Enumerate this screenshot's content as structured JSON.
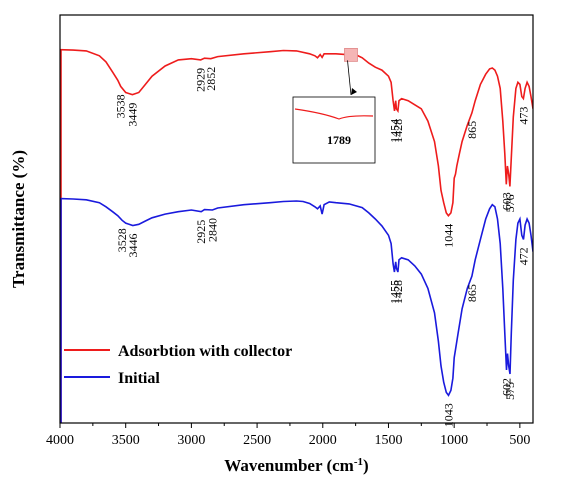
{
  "chart_data": {
    "type": "line",
    "xlabel": "Wavenumber (cm",
    "xlabel_sup": "-1",
    "xlabel_end": ")",
    "ylabel": "Transmittance (%)",
    "xlim": [
      4000,
      400
    ],
    "x_reversed": true,
    "xticks": [
      4000,
      3500,
      3000,
      2500,
      2000,
      1500,
      1000,
      500
    ],
    "yticks_shown": false,
    "grid": false,
    "legend_position": "bottom-left",
    "series": [
      {
        "name": "Adsorbtion with collector",
        "color": "#ee1c1c",
        "points": [
          [
            4000,
            0.915
          ],
          [
            3900,
            0.914
          ],
          [
            3800,
            0.912
          ],
          [
            3700,
            0.9
          ],
          [
            3650,
            0.885
          ],
          [
            3600,
            0.86
          ],
          [
            3560,
            0.84
          ],
          [
            3538,
            0.825
          ],
          [
            3500,
            0.81
          ],
          [
            3449,
            0.805
          ],
          [
            3400,
            0.81
          ],
          [
            3350,
            0.83
          ],
          [
            3300,
            0.85
          ],
          [
            3200,
            0.875
          ],
          [
            3100,
            0.89
          ],
          [
            3000,
            0.893
          ],
          [
            2929,
            0.89
          ],
          [
            2900,
            0.894
          ],
          [
            2852,
            0.893
          ],
          [
            2800,
            0.898
          ],
          [
            2600,
            0.905
          ],
          [
            2400,
            0.91
          ],
          [
            2300,
            0.913
          ],
          [
            2200,
            0.912
          ],
          [
            2100,
            0.905
          ],
          [
            2060,
            0.9
          ],
          [
            2040,
            0.895
          ],
          [
            2020,
            0.903
          ],
          [
            2005,
            0.896
          ],
          [
            1990,
            0.905
          ],
          [
            1950,
            0.905
          ],
          [
            1900,
            0.905
          ],
          [
            1820,
            0.903
          ],
          [
            1789,
            0.901
          ],
          [
            1750,
            0.903
          ],
          [
            1700,
            0.895
          ],
          [
            1650,
            0.882
          ],
          [
            1600,
            0.872
          ],
          [
            1550,
            0.865
          ],
          [
            1500,
            0.85
          ],
          [
            1480,
            0.835
          ],
          [
            1465,
            0.79
          ],
          [
            1454,
            0.765
          ],
          [
            1445,
            0.79
          ],
          [
            1440,
            0.77
          ],
          [
            1428,
            0.765
          ],
          [
            1420,
            0.79
          ],
          [
            1400,
            0.795
          ],
          [
            1350,
            0.79
          ],
          [
            1300,
            0.78
          ],
          [
            1250,
            0.77
          ],
          [
            1200,
            0.74
          ],
          [
            1150,
            0.69
          ],
          [
            1120,
            0.63
          ],
          [
            1100,
            0.57
          ],
          [
            1080,
            0.54
          ],
          [
            1060,
            0.515
          ],
          [
            1044,
            0.508
          ],
          [
            1025,
            0.515
          ],
          [
            1010,
            0.54
          ],
          [
            1000,
            0.6
          ],
          [
            990,
            0.61
          ],
          [
            980,
            0.63
          ],
          [
            960,
            0.66
          ],
          [
            940,
            0.69
          ],
          [
            900,
            0.73
          ],
          [
            865,
            0.76
          ],
          [
            840,
            0.79
          ],
          [
            800,
            0.83
          ],
          [
            760,
            0.855
          ],
          [
            730,
            0.868
          ],
          [
            710,
            0.87
          ],
          [
            690,
            0.865
          ],
          [
            670,
            0.85
          ],
          [
            650,
            0.82
          ],
          [
            630,
            0.74
          ],
          [
            615,
            0.66
          ],
          [
            603,
            0.585
          ],
          [
            595,
            0.63
          ],
          [
            585,
            0.61
          ],
          [
            576,
            0.58
          ],
          [
            565,
            0.65
          ],
          [
            550,
            0.75
          ],
          [
            530,
            0.82
          ],
          [
            515,
            0.835
          ],
          [
            500,
            0.83
          ],
          [
            485,
            0.8
          ],
          [
            473,
            0.795
          ],
          [
            460,
            0.82
          ],
          [
            445,
            0.835
          ],
          [
            430,
            0.825
          ],
          [
            415,
            0.8
          ],
          [
            400,
            0.77
          ]
        ]
      },
      {
        "name": "Initial",
        "color": "#1a1add",
        "points": [
          [
            4000,
            0.55
          ],
          [
            3900,
            0.549
          ],
          [
            3800,
            0.547
          ],
          [
            3700,
            0.54
          ],
          [
            3650,
            0.53
          ],
          [
            3600,
            0.518
          ],
          [
            3560,
            0.508
          ],
          [
            3528,
            0.497
          ],
          [
            3500,
            0.49
          ],
          [
            3446,
            0.484
          ],
          [
            3400,
            0.487
          ],
          [
            3350,
            0.495
          ],
          [
            3300,
            0.503
          ],
          [
            3200,
            0.512
          ],
          [
            3100,
            0.518
          ],
          [
            3000,
            0.522
          ],
          [
            2925,
            0.518
          ],
          [
            2900,
            0.523
          ],
          [
            2840,
            0.522
          ],
          [
            2800,
            0.527
          ],
          [
            2600,
            0.535
          ],
          [
            2400,
            0.54
          ],
          [
            2300,
            0.543
          ],
          [
            2200,
            0.544
          ],
          [
            2150,
            0.543
          ],
          [
            2100,
            0.538
          ],
          [
            2060,
            0.53
          ],
          [
            2040,
            0.525
          ],
          [
            2020,
            0.532
          ],
          [
            2005,
            0.512
          ],
          [
            1990,
            0.535
          ],
          [
            1950,
            0.542
          ],
          [
            1900,
            0.54
          ],
          [
            1800,
            0.537
          ],
          [
            1700,
            0.528
          ],
          [
            1650,
            0.515
          ],
          [
            1600,
            0.5
          ],
          [
            1550,
            0.483
          ],
          [
            1500,
            0.46
          ],
          [
            1480,
            0.44
          ],
          [
            1465,
            0.39
          ],
          [
            1455,
            0.37
          ],
          [
            1445,
            0.395
          ],
          [
            1440,
            0.38
          ],
          [
            1428,
            0.37
          ],
          [
            1420,
            0.4
          ],
          [
            1400,
            0.405
          ],
          [
            1350,
            0.4
          ],
          [
            1300,
            0.385
          ],
          [
            1250,
            0.365
          ],
          [
            1200,
            0.33
          ],
          [
            1150,
            0.27
          ],
          [
            1120,
            0.2
          ],
          [
            1100,
            0.14
          ],
          [
            1080,
            0.1
          ],
          [
            1060,
            0.075
          ],
          [
            1043,
            0.068
          ],
          [
            1025,
            0.08
          ],
          [
            1010,
            0.11
          ],
          [
            1000,
            0.16
          ],
          [
            990,
            0.18
          ],
          [
            970,
            0.22
          ],
          [
            940,
            0.28
          ],
          [
            900,
            0.33
          ],
          [
            865,
            0.36
          ],
          [
            840,
            0.4
          ],
          [
            800,
            0.45
          ],
          [
            760,
            0.5
          ],
          [
            730,
            0.525
          ],
          [
            710,
            0.535
          ],
          [
            690,
            0.53
          ],
          [
            670,
            0.5
          ],
          [
            650,
            0.44
          ],
          [
            630,
            0.33
          ],
          [
            615,
            0.22
          ],
          [
            602,
            0.13
          ],
          [
            594,
            0.17
          ],
          [
            585,
            0.14
          ],
          [
            575,
            0.12
          ],
          [
            565,
            0.22
          ],
          [
            550,
            0.35
          ],
          [
            530,
            0.45
          ],
          [
            515,
            0.49
          ],
          [
            500,
            0.5
          ],
          [
            485,
            0.46
          ],
          [
            472,
            0.45
          ],
          [
            460,
            0.485
          ],
          [
            445,
            0.5
          ],
          [
            430,
            0.49
          ],
          [
            415,
            0.46
          ],
          [
            400,
            0.42
          ]
        ]
      }
    ],
    "peak_labels": [
      {
        "text": "3538",
        "x": 3538,
        "series": 0
      },
      {
        "text": "3449",
        "x": 3449,
        "series": 0
      },
      {
        "text": "2929",
        "x": 2929,
        "series": 0
      },
      {
        "text": "2852",
        "x": 2852,
        "series": 0
      },
      {
        "text": "1454",
        "x": 1454,
        "series": 0
      },
      {
        "text": "1428",
        "x": 1428,
        "series": 0
      },
      {
        "text": "1044",
        "x": 1044,
        "series": 0
      },
      {
        "text": "865",
        "x": 865,
        "series": 0
      },
      {
        "text": "603",
        "x": 603,
        "series": 0
      },
      {
        "text": "576",
        "x": 576,
        "series": 0
      },
      {
        "text": "473",
        "x": 473,
        "series": 0
      },
      {
        "text": "3528",
        "x": 3528,
        "series": 1
      },
      {
        "text": "3446",
        "x": 3446,
        "series": 1
      },
      {
        "text": "2925",
        "x": 2925,
        "series": 1
      },
      {
        "text": "2840",
        "x": 2840,
        "series": 1
      },
      {
        "text": "1455",
        "x": 1455,
        "series": 1
      },
      {
        "text": "1428",
        "x": 1428,
        "series": 1
      },
      {
        "text": "1043",
        "x": 1043,
        "series": 1
      },
      {
        "text": "865",
        "x": 865,
        "series": 1
      },
      {
        "text": "602",
        "x": 602,
        "series": 1
      },
      {
        "text": "575",
        "x": 575,
        "series": 1
      },
      {
        "text": "472",
        "x": 472,
        "series": 1
      }
    ],
    "inset": {
      "label": "1789",
      "x_center": 1789,
      "series": 0
    }
  }
}
